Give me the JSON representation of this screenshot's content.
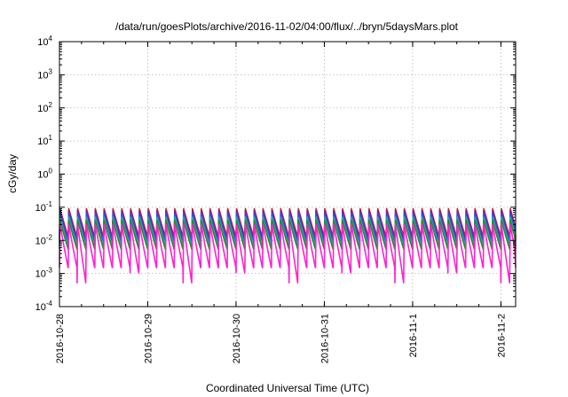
{
  "chart_data": {
    "type": "line",
    "title": "/data/run/goesPlots/archive/2016-11-02/04:00/flux/../bryn/5daysMars.plot",
    "xlabel": "Coordinated Universal Time (UTC)",
    "ylabel": "cGy/day",
    "yscale": "log",
    "ylim": [
      0.0001,
      10000
    ],
    "ytick_labels": [
      {
        "value": 0.0001,
        "base": "10",
        "exp": "-4"
      },
      {
        "value": 0.001,
        "base": "10",
        "exp": "-3"
      },
      {
        "value": 0.01,
        "base": "10",
        "exp": "-2"
      },
      {
        "value": 0.1,
        "base": "10",
        "exp": "-1"
      },
      {
        "value": 1,
        "base": "10",
        "exp": "0"
      },
      {
        "value": 10,
        "base": "10",
        "exp": "1"
      },
      {
        "value": 100,
        "base": "10",
        "exp": "2"
      },
      {
        "value": 1000,
        "base": "10",
        "exp": "3"
      },
      {
        "value": 10000,
        "base": "10",
        "exp": "4"
      }
    ],
    "xlim": [
      "2016-10-28T00:00",
      "2016-11-02T04:00"
    ],
    "xtick_labels": [
      "2016-10-28",
      "2016-10-29",
      "2016-10-30",
      "2016-10-31",
      "2016-11-1",
      "2016-11-2"
    ],
    "grid": true,
    "legend": "none",
    "sawtooth_period_hours": 2.4,
    "series": [
      {
        "color": "#e01a1a",
        "peak": 0.09,
        "trough": 0.013
      },
      {
        "color": "#7a1fa2",
        "peak": 0.08,
        "trough": 0.011
      },
      {
        "color": "#2457d6",
        "peak": 0.065,
        "trough": 0.009
      },
      {
        "color": "#22aaaa",
        "peak": 0.05,
        "trough": 0.007
      },
      {
        "color": "#2a8c2a",
        "peak": 0.04,
        "trough": 0.0055
      },
      {
        "color": "#ff22cc",
        "peak": 0.03,
        "trough": 0.0015
      }
    ]
  }
}
